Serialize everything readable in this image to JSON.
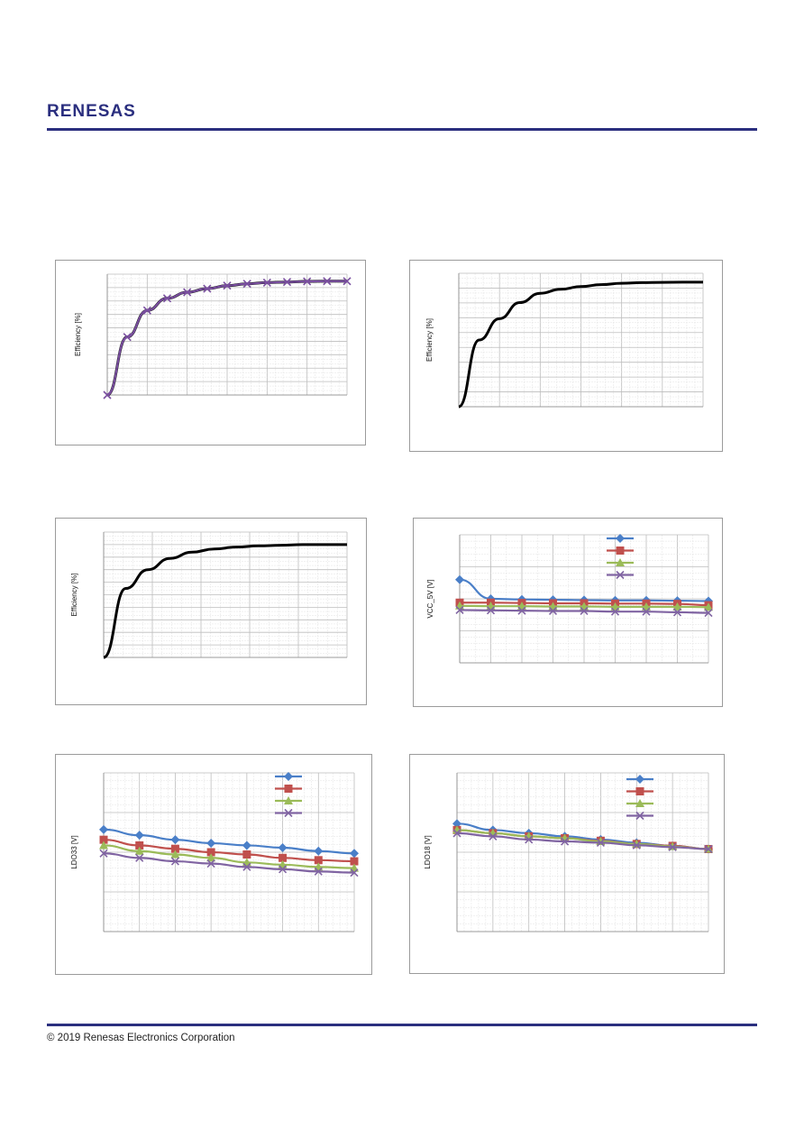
{
  "header": {
    "logo_text": "RENESAS",
    "brand_color": "#2b2f7f"
  },
  "footer": {
    "copyright": "© 2019 Renesas Electronics Corporation"
  },
  "chart_data": [
    {
      "type": "line",
      "title": "",
      "ylabel": "Efficiency [%]",
      "xlabel": "",
      "grid": true,
      "x": [
        0,
        1,
        2,
        3,
        4,
        5,
        6,
        7,
        8,
        9,
        10,
        11,
        12
      ],
      "series": [
        {
          "name": "",
          "color": "#000000",
          "marker": "none",
          "values": [
            0,
            48,
            70,
            80,
            85,
            88,
            90.5,
            92,
            93,
            93.5,
            94,
            94.2,
            94.2
          ]
        },
        {
          "name": "",
          "color": "#7a4fa0",
          "marker": "x",
          "values": [
            0,
            48,
            70,
            80,
            85,
            88,
            90.5,
            92,
            93,
            93.5,
            94,
            94.2,
            94.2
          ]
        }
      ],
      "ylim": [
        0,
        100
      ]
    },
    {
      "type": "line",
      "title": "",
      "ylabel": "Efficiency [%]",
      "xlabel": "",
      "grid": true,
      "x": [
        0,
        1,
        2,
        3,
        4,
        5,
        6,
        7,
        8,
        9,
        10,
        11,
        12
      ],
      "series": [
        {
          "name": "",
          "color": "#000000",
          "marker": "none",
          "values": [
            0,
            50,
            66,
            78,
            85,
            88,
            90,
            91.5,
            92.5,
            93,
            93.2,
            93.3,
            93.3
          ]
        }
      ],
      "ylim": [
        0,
        100
      ]
    },
    {
      "type": "line",
      "title": "",
      "ylabel": "Efficiency [%]",
      "xlabel": "",
      "grid": true,
      "x": [
        0,
        1,
        2,
        3,
        4,
        5,
        6,
        7,
        8,
        9,
        10,
        11
      ],
      "series": [
        {
          "name": "",
          "color": "#000000",
          "marker": "none",
          "values": [
            0,
            55,
            70,
            79,
            84,
            86.5,
            88,
            89,
            89.5,
            90,
            90,
            90
          ]
        }
      ],
      "ylim": [
        0,
        100
      ]
    },
    {
      "type": "line",
      "title": "",
      "ylabel": "VCC_5V [V]",
      "xlabel": "",
      "grid": true,
      "legend": "top-right",
      "x": [
        0,
        1,
        2,
        3,
        4,
        5,
        6,
        7,
        8
      ],
      "series": [
        {
          "name": "",
          "color": "#4a7fc8",
          "marker": "diamond",
          "values": [
            5.6,
            5.0,
            4.98,
            4.97,
            4.96,
            4.95,
            4.95,
            4.94,
            4.93
          ]
        },
        {
          "name": "",
          "color": "#c0504d",
          "marker": "square",
          "values": [
            4.88,
            4.88,
            4.87,
            4.86,
            4.86,
            4.85,
            4.85,
            4.84,
            4.8
          ]
        },
        {
          "name": "",
          "color": "#9bbb59",
          "marker": "triangle",
          "values": [
            4.78,
            4.77,
            4.77,
            4.76,
            4.76,
            4.75,
            4.75,
            4.75,
            4.74
          ]
        },
        {
          "name": "",
          "color": "#8064a2",
          "marker": "x",
          "values": [
            4.65,
            4.64,
            4.63,
            4.62,
            4.62,
            4.6,
            4.6,
            4.58,
            4.56
          ]
        }
      ],
      "ylim": [
        3,
        7
      ]
    },
    {
      "type": "line",
      "title": "",
      "ylabel": "LDO33 [V]",
      "xlabel": "",
      "grid": true,
      "legend": "top-right",
      "x": [
        0,
        1,
        2,
        3,
        4,
        5,
        6,
        7
      ],
      "series": [
        {
          "name": "",
          "color": "#4a7fc8",
          "marker": "diamond",
          "values": [
            3.5,
            3.45,
            3.41,
            3.38,
            3.36,
            3.34,
            3.31,
            3.29
          ]
        },
        {
          "name": "",
          "color": "#c0504d",
          "marker": "square",
          "values": [
            3.41,
            3.36,
            3.33,
            3.3,
            3.28,
            3.25,
            3.23,
            3.22
          ]
        },
        {
          "name": "",
          "color": "#9bbb59",
          "marker": "triangle",
          "values": [
            3.36,
            3.31,
            3.28,
            3.25,
            3.21,
            3.19,
            3.17,
            3.16
          ]
        },
        {
          "name": "",
          "color": "#8064a2",
          "marker": "x",
          "values": [
            3.29,
            3.25,
            3.22,
            3.2,
            3.17,
            3.15,
            3.13,
            3.12
          ]
        }
      ],
      "ylim": [
        2.6,
        4.0
      ]
    },
    {
      "type": "line",
      "title": "",
      "ylabel": "LDO18 [V]",
      "xlabel": "",
      "grid": true,
      "legend": "top-right",
      "x": [
        0,
        1,
        2,
        3,
        4,
        5,
        6,
        7
      ],
      "series": [
        {
          "name": "",
          "color": "#4a7fc8",
          "marker": "diamond",
          "values": [
            1.87,
            1.86,
            1.855,
            1.85,
            1.845,
            1.84,
            1.835,
            1.83
          ]
        },
        {
          "name": "",
          "color": "#c0504d",
          "marker": "square",
          "values": [
            1.86,
            1.855,
            1.85,
            1.847,
            1.843,
            1.838,
            1.835,
            1.83
          ]
        },
        {
          "name": "",
          "color": "#9bbb59",
          "marker": "triangle",
          "values": [
            1.86,
            1.855,
            1.85,
            1.847,
            1.842,
            1.838,
            1.834,
            1.83
          ]
        },
        {
          "name": "",
          "color": "#8064a2",
          "marker": "x",
          "values": [
            1.855,
            1.85,
            1.845,
            1.842,
            1.84,
            1.836,
            1.833,
            1.83
          ]
        }
      ],
      "ylim": [
        1.7,
        1.95
      ]
    }
  ]
}
